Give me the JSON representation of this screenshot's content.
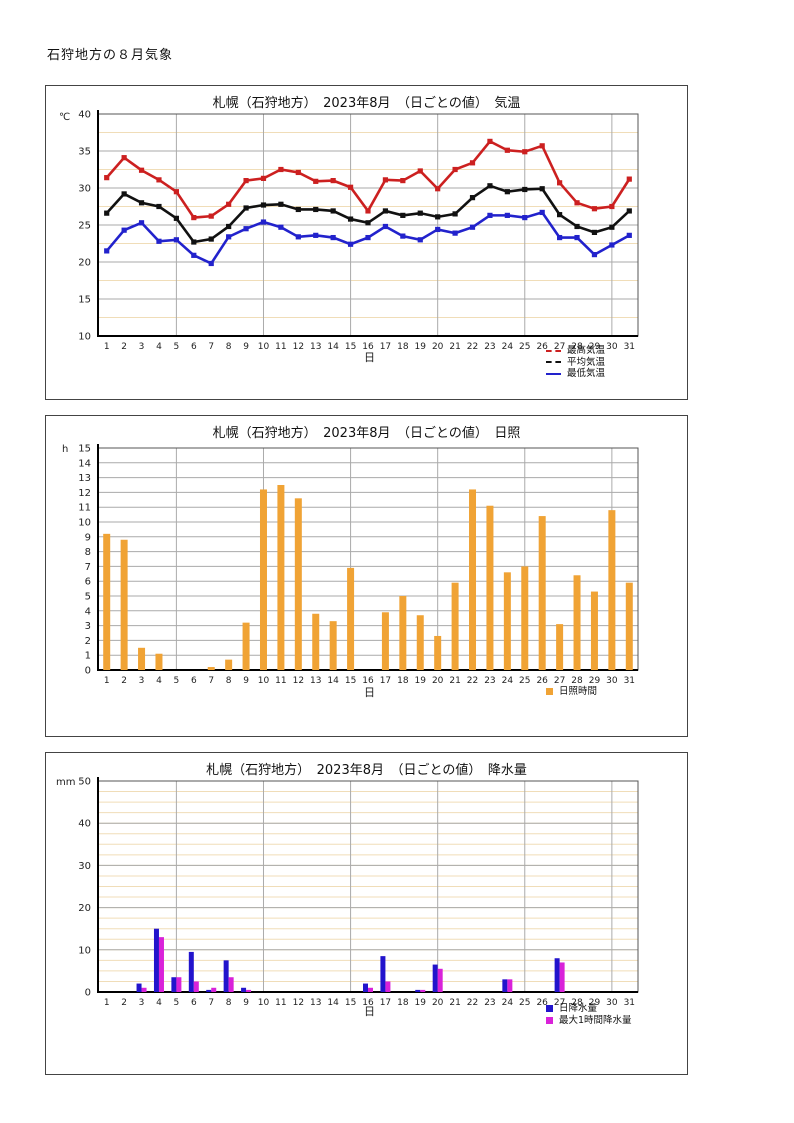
{
  "page": {
    "title": "石狩地方の８月気象"
  },
  "chart_data": [
    {
      "type": "line",
      "title": "札幌（石狩地方）　2023年8月　（日ごとの値）　気温",
      "unit": "℃",
      "xlabel": "日",
      "x": [
        1,
        2,
        3,
        4,
        5,
        6,
        7,
        8,
        9,
        10,
        11,
        12,
        13,
        14,
        15,
        16,
        17,
        18,
        19,
        20,
        21,
        22,
        23,
        24,
        25,
        26,
        27,
        28,
        29,
        30,
        31
      ],
      "ylim": [
        10,
        40
      ],
      "ytick_step": 5,
      "yminor_step": 2.5,
      "grid": true,
      "legend_position": "bottom-right",
      "minor_grid_color": "#f0ddb8",
      "major_grid_color": "#aaaaaa",
      "series": [
        {
          "name": "最高気温",
          "color": "#cc2020",
          "marker": "square",
          "legend_line": "dashed",
          "values": [
            31.4,
            34.1,
            32.4,
            31.1,
            29.5,
            26.0,
            26.2,
            27.8,
            31.0,
            31.3,
            32.5,
            32.1,
            30.9,
            31.0,
            30.1,
            26.9,
            31.1,
            31.0,
            32.3,
            29.9,
            32.5,
            33.4,
            36.3,
            35.1,
            34.9,
            35.7,
            30.7,
            28.0,
            27.2,
            27.5,
            31.2
          ]
        },
        {
          "name": "平均気温",
          "color": "#111111",
          "marker": "square",
          "legend_line": "dashed",
          "values": [
            26.6,
            29.2,
            28.0,
            27.5,
            25.9,
            22.7,
            23.1,
            24.8,
            27.3,
            27.7,
            27.8,
            27.1,
            27.1,
            26.9,
            25.8,
            25.3,
            26.9,
            26.3,
            26.6,
            26.1,
            26.5,
            28.7,
            30.3,
            29.5,
            29.8,
            29.9,
            26.4,
            24.8,
            24.0,
            24.7,
            26.9
          ]
        },
        {
          "name": "最低気温",
          "color": "#2222cc",
          "marker": "square",
          "legend_line": "solid",
          "values": [
            21.5,
            24.3,
            25.3,
            22.8,
            23.0,
            20.9,
            19.8,
            23.4,
            24.5,
            25.4,
            24.7,
            23.4,
            23.6,
            23.3,
            22.4,
            23.3,
            24.8,
            23.5,
            23.0,
            24.4,
            23.9,
            24.7,
            26.3,
            26.3,
            26.0,
            26.7,
            23.3,
            23.3,
            21.0,
            22.3,
            23.6
          ]
        }
      ]
    },
    {
      "type": "bar",
      "title": "札幌（石狩地方）　2023年8月　（日ごとの値）　日照",
      "unit": "h",
      "xlabel": "日",
      "x": [
        1,
        2,
        3,
        4,
        5,
        6,
        7,
        8,
        9,
        10,
        11,
        12,
        13,
        14,
        15,
        16,
        17,
        18,
        19,
        20,
        21,
        22,
        23,
        24,
        25,
        26,
        27,
        28,
        29,
        30,
        31
      ],
      "ylim": [
        0,
        15
      ],
      "ytick_step": 1,
      "grid": true,
      "legend_position": "bottom-right",
      "major_grid_color": "#aaaaaa",
      "series": [
        {
          "name": "日照時間",
          "color": "#f0a335",
          "values": [
            9.2,
            8.8,
            1.5,
            1.1,
            0,
            0,
            0.2,
            0.7,
            3.2,
            12.2,
            12.5,
            11.6,
            3.8,
            3.3,
            6.9,
            0,
            3.9,
            5.0,
            3.7,
            2.3,
            5.9,
            12.2,
            11.1,
            6.6,
            7.0,
            10.4,
            3.1,
            6.4,
            5.3,
            10.8,
            5.9
          ]
        }
      ]
    },
    {
      "type": "bar",
      "title": "札幌（石狩地方）　2023年8月　（日ごとの値）　降水量",
      "unit": "mm",
      "xlabel": "日",
      "x": [
        1,
        2,
        3,
        4,
        5,
        6,
        7,
        8,
        9,
        10,
        11,
        12,
        13,
        14,
        15,
        16,
        17,
        18,
        19,
        20,
        21,
        22,
        23,
        24,
        25,
        26,
        27,
        28,
        29,
        30,
        31
      ],
      "ylim": [
        0,
        50
      ],
      "ytick_step": 10,
      "yminor_step": 2.5,
      "grid": true,
      "legend_position": "bottom-right",
      "minor_grid_color": "#f0ddb8",
      "major_grid_color": "#aaaaaa",
      "series": [
        {
          "name": "日降水量",
          "color": "#2214cc",
          "values": [
            0,
            0,
            2.0,
            15.0,
            3.5,
            9.5,
            0.5,
            7.5,
            1.0,
            0,
            0,
            0,
            0,
            0,
            0,
            2.0,
            8.5,
            0,
            0.5,
            6.5,
            0,
            0,
            0,
            3.0,
            0,
            0,
            8.0,
            0,
            0,
            0,
            0
          ]
        },
        {
          "name": "最大1時間降水量",
          "color": "#d922d9",
          "values": [
            0,
            0,
            1.0,
            13.0,
            3.5,
            2.5,
            1.0,
            3.5,
            0.5,
            0,
            0,
            0,
            0,
            0,
            0,
            1.0,
            2.5,
            0,
            0.5,
            5.5,
            0,
            0,
            0,
            3.0,
            0,
            0,
            7.0,
            0,
            0,
            0,
            0
          ]
        }
      ]
    }
  ]
}
